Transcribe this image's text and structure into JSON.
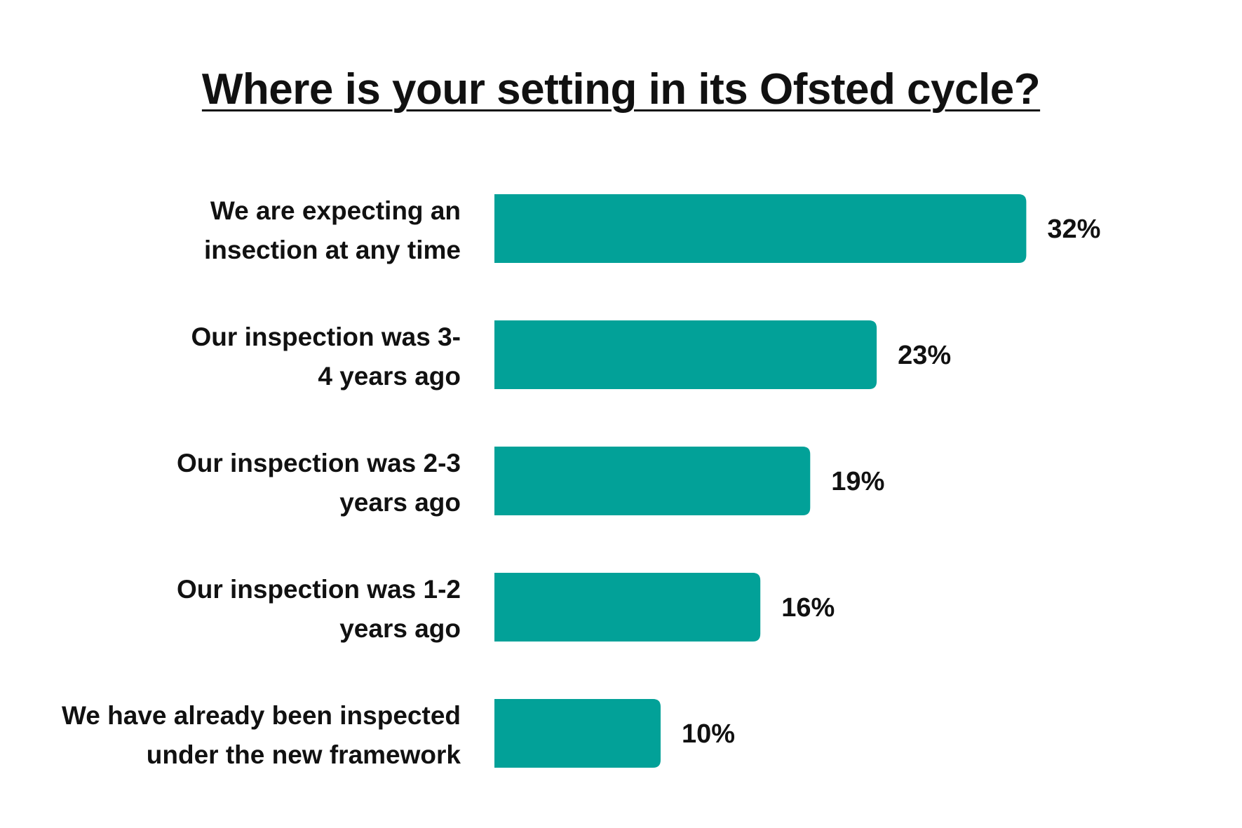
{
  "chart_data": {
    "type": "bar",
    "orientation": "horizontal",
    "title": "Where is your setting in its Ofsted cycle?",
    "categories": [
      [
        "We are expecting an",
        "insection at any time"
      ],
      [
        "Our inspection was 3-",
        "4 years ago"
      ],
      [
        "Our inspection was 2-3",
        "years ago"
      ],
      [
        "Our inspection was 1-2",
        "years ago"
      ],
      [
        "We have already been inspected",
        "under the new framework"
      ]
    ],
    "values": [
      32,
      23,
      19,
      16,
      10
    ],
    "value_labels": [
      "32%",
      "23%",
      "19%",
      "16%",
      "10%"
    ],
    "unit": "%",
    "bar_color": "#02a198",
    "grid": false,
    "legend": "none"
  }
}
